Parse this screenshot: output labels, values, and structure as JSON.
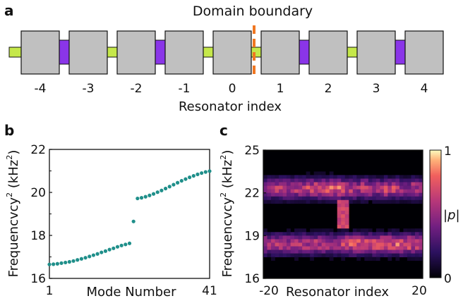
{
  "panel_a": {
    "letter": "a",
    "title": "Domain boundary",
    "xlabel": "Resonator index",
    "indices": [
      "-4",
      "-3",
      "-2",
      "-1",
      "0",
      "1",
      "2",
      "3",
      "4"
    ],
    "colors": {
      "resonator": "#c0c0c0",
      "strong_coupler": "#8a35e8",
      "weak_coupler": "#c5e84a",
      "boundary": "#f07722"
    }
  },
  "panel_b": {
    "letter": "b",
    "ylabel_main": "Frequencvcy",
    "ylabel_sup": "2",
    "ylabel_unit_open": " (kHz",
    "ylabel_unit_close": ")",
    "xlabel": "Mode Number",
    "x_min_label": "1",
    "x_max_label": "41",
    "y_ticks": [
      "16",
      "18",
      "20",
      "22"
    ]
  },
  "panel_c": {
    "letter": "c",
    "ylabel_main": "Frequencvcy",
    "ylabel_sup": "2",
    "ylabel_unit_open": " (kHz",
    "ylabel_unit_close": ")",
    "xlabel": "Resonator index",
    "x_min_label": "-20",
    "x_max_label": "20",
    "y_ticks": [
      "16",
      "19",
      "22",
      "25"
    ],
    "colorbar_min": "0",
    "colorbar_max": "1",
    "colorbar_label": "|p|"
  },
  "chart_data": [
    {
      "type": "scatter",
      "xlabel": "Mode Number",
      "ylabel": "Frequencvcy² (kHz²)",
      "xlim": [
        1,
        41
      ],
      "ylim": [
        16,
        22
      ],
      "x": [
        1,
        2,
        3,
        4,
        5,
        6,
        7,
        8,
        9,
        10,
        11,
        12,
        13,
        14,
        15,
        16,
        17,
        18,
        19,
        20,
        21,
        22,
        23,
        24,
        25,
        26,
        27,
        28,
        29,
        30,
        31,
        32,
        33,
        34,
        35,
        36,
        37,
        38,
        39,
        40,
        41
      ],
      "y": [
        16.65,
        16.66,
        16.68,
        16.71,
        16.74,
        16.77,
        16.81,
        16.86,
        16.91,
        16.96,
        17.02,
        17.08,
        17.14,
        17.21,
        17.27,
        17.34,
        17.4,
        17.47,
        17.53,
        17.58,
        17.63,
        18.65,
        19.72,
        19.75,
        19.8,
        19.86,
        19.93,
        20.01,
        20.09,
        20.18,
        20.27,
        20.36,
        20.45,
        20.54,
        20.62,
        20.7,
        20.77,
        20.84,
        20.9,
        20.95,
        20.99
      ],
      "color": "#1f8f8a"
    },
    {
      "type": "heatmap",
      "xlabel": "Resonator index",
      "ylabel": "Frequencvcy² (kHz²)",
      "xlim": [
        -20,
        20
      ],
      "ylim": [
        16,
        25
      ],
      "colorbar": {
        "min": 0,
        "max": 1,
        "label": "|p|",
        "colormap": "magma"
      },
      "bands": [
        {
          "center": 22.3,
          "width": 1.8
        },
        {
          "center": 18.4,
          "width": 1.8
        }
      ],
      "boundary_x": 0
    }
  ]
}
